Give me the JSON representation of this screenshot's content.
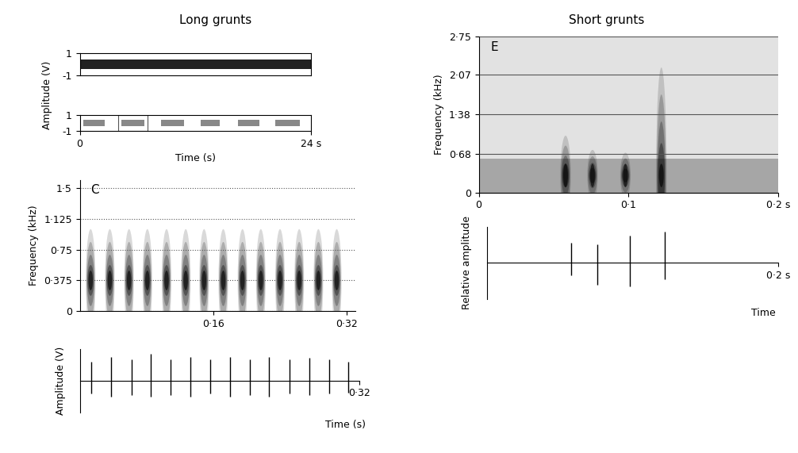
{
  "headings": [
    "Long grunts",
    "Short grunts"
  ],
  "chart_data": [
    {
      "type": "band",
      "bursts": [
        [
          0,
          24
        ]
      ],
      "amplitudes": [
        0.45
      ],
      "color": "#222222",
      "xlim": [
        0,
        24
      ],
      "ylim": [
        -1,
        1
      ],
      "yticks": [
        -1,
        1
      ],
      "tick_labels": "y"
    },
    {
      "type": "band",
      "bursts": [
        [
          0.4,
          2.6
        ],
        [
          4.3,
          6.7
        ],
        [
          8.4,
          10.8
        ],
        [
          12.5,
          14.5
        ],
        [
          16.4,
          18.6
        ],
        [
          20.3,
          22.8
        ]
      ],
      "amplitudes": [
        0.4,
        0.4,
        0.4,
        0.4,
        0.4,
        0.4
      ],
      "color": "#888888",
      "highlight": [
        4.0,
        7.0
      ],
      "xlim": [
        0,
        24
      ],
      "ylim": [
        -1,
        1
      ],
      "yticks": [
        -1,
        1
      ],
      "xticks": [
        0,
        {
          "value": 24,
          "label": "24 s"
        }
      ],
      "xlabel": "Time (s)",
      "ylabel": "Amplitude (V)"
    },
    {
      "type": "spectrogram",
      "label": "C",
      "pulse_times": [
        0.013,
        0.036,
        0.059,
        0.081,
        0.104,
        0.127,
        0.149,
        0.172,
        0.195,
        0.217,
        0.24,
        0.263,
        0.286,
        0.308
      ],
      "freq_tops": [
        1.0,
        1.0,
        1.0,
        1.0,
        1.0,
        1.0,
        1.0,
        1.0,
        1.0,
        1.0,
        1.0,
        1.0,
        1.0,
        1.0
      ],
      "peak_freq": 0.375,
      "color": "#000000",
      "xlim": [
        0,
        0.33
      ],
      "ylim": [
        0,
        1.6
      ],
      "xticks": [
        {
          "value": 0.16,
          "label": "0·16"
        },
        {
          "value": 0.32,
          "label": "0·32"
        }
      ],
      "yticks": [
        0,
        {
          "value": 0.375,
          "label": "0·375"
        },
        {
          "value": 0.75,
          "label": "0·75"
        },
        {
          "value": 1.125,
          "label": "1·125"
        },
        {
          "value": 1.5,
          "label": "1·5"
        }
      ],
      "ylabel": "Frequency (kHz)",
      "grid": true,
      "line_style": "dotted"
    },
    {
      "type": "waveform",
      "x": [
        0.013,
        0.036,
        0.059,
        0.081,
        0.104,
        0.127,
        0.149,
        0.172,
        0.195,
        0.217,
        0.24,
        0.263,
        0.286,
        0.308
      ],
      "peaks": [
        0.7,
        0.9,
        0.8,
        1.0,
        0.8,
        0.9,
        0.8,
        0.9,
        0.8,
        0.9,
        0.8,
        0.85,
        0.8,
        0.7
      ],
      "troughs": [
        -0.5,
        -0.6,
        -0.55,
        -0.6,
        -0.55,
        -0.6,
        -0.5,
        -0.6,
        -0.55,
        -0.6,
        -0.5,
        -0.55,
        -0.5,
        -0.45
      ],
      "color": "#000000",
      "xlim": [
        0,
        0.32
      ],
      "ylim": [
        -1.2,
        1.2
      ],
      "xticks": [
        {
          "value": 0.32,
          "label": "0·32"
        }
      ],
      "xlabel": "Time (s)",
      "ylabel": "Amplitude (V)",
      "tick_labels": "x"
    },
    {
      "type": "spectrogram",
      "label": "E",
      "pulse_times": [
        0.058,
        0.076,
        0.098,
        0.122
      ],
      "freq_tops": [
        1.0,
        0.75,
        0.7,
        2.2
      ],
      "peak_freq": 0.3,
      "band": [
        0,
        0.6
      ],
      "color": "#000000",
      "xlim": [
        0,
        0.2
      ],
      "ylim": [
        0,
        2.75
      ],
      "xticks": [
        0,
        {
          "value": 0.1,
          "label": "0·1"
        },
        {
          "value": 0.2,
          "label": "0·2 s"
        }
      ],
      "yticks": [
        0,
        {
          "value": 0.68,
          "label": "0·68"
        },
        {
          "value": 1.38,
          "label": "1·38"
        },
        {
          "value": 2.07,
          "label": "2·07"
        },
        {
          "value": 2.75,
          "label": "2·75"
        }
      ],
      "ylabel": "Frequency (kHz)",
      "grid": true,
      "line_style": "solid"
    },
    {
      "type": "waveform",
      "x": [
        0.058,
        0.076,
        0.098,
        0.122
      ],
      "peaks": [
        0.55,
        0.5,
        0.75,
        0.85
      ],
      "troughs": [
        -0.35,
        -0.6,
        -0.65,
        -0.45
      ],
      "color": "#000000",
      "xlim": [
        0,
        0.2
      ],
      "ylim": [
        -1,
        1
      ],
      "xticks": [
        {
          "value": 0.2,
          "label": "0·2 s"
        }
      ],
      "xlabel": "Time",
      "ylabel": "Relative amplitude",
      "tick_labels": "x"
    }
  ]
}
